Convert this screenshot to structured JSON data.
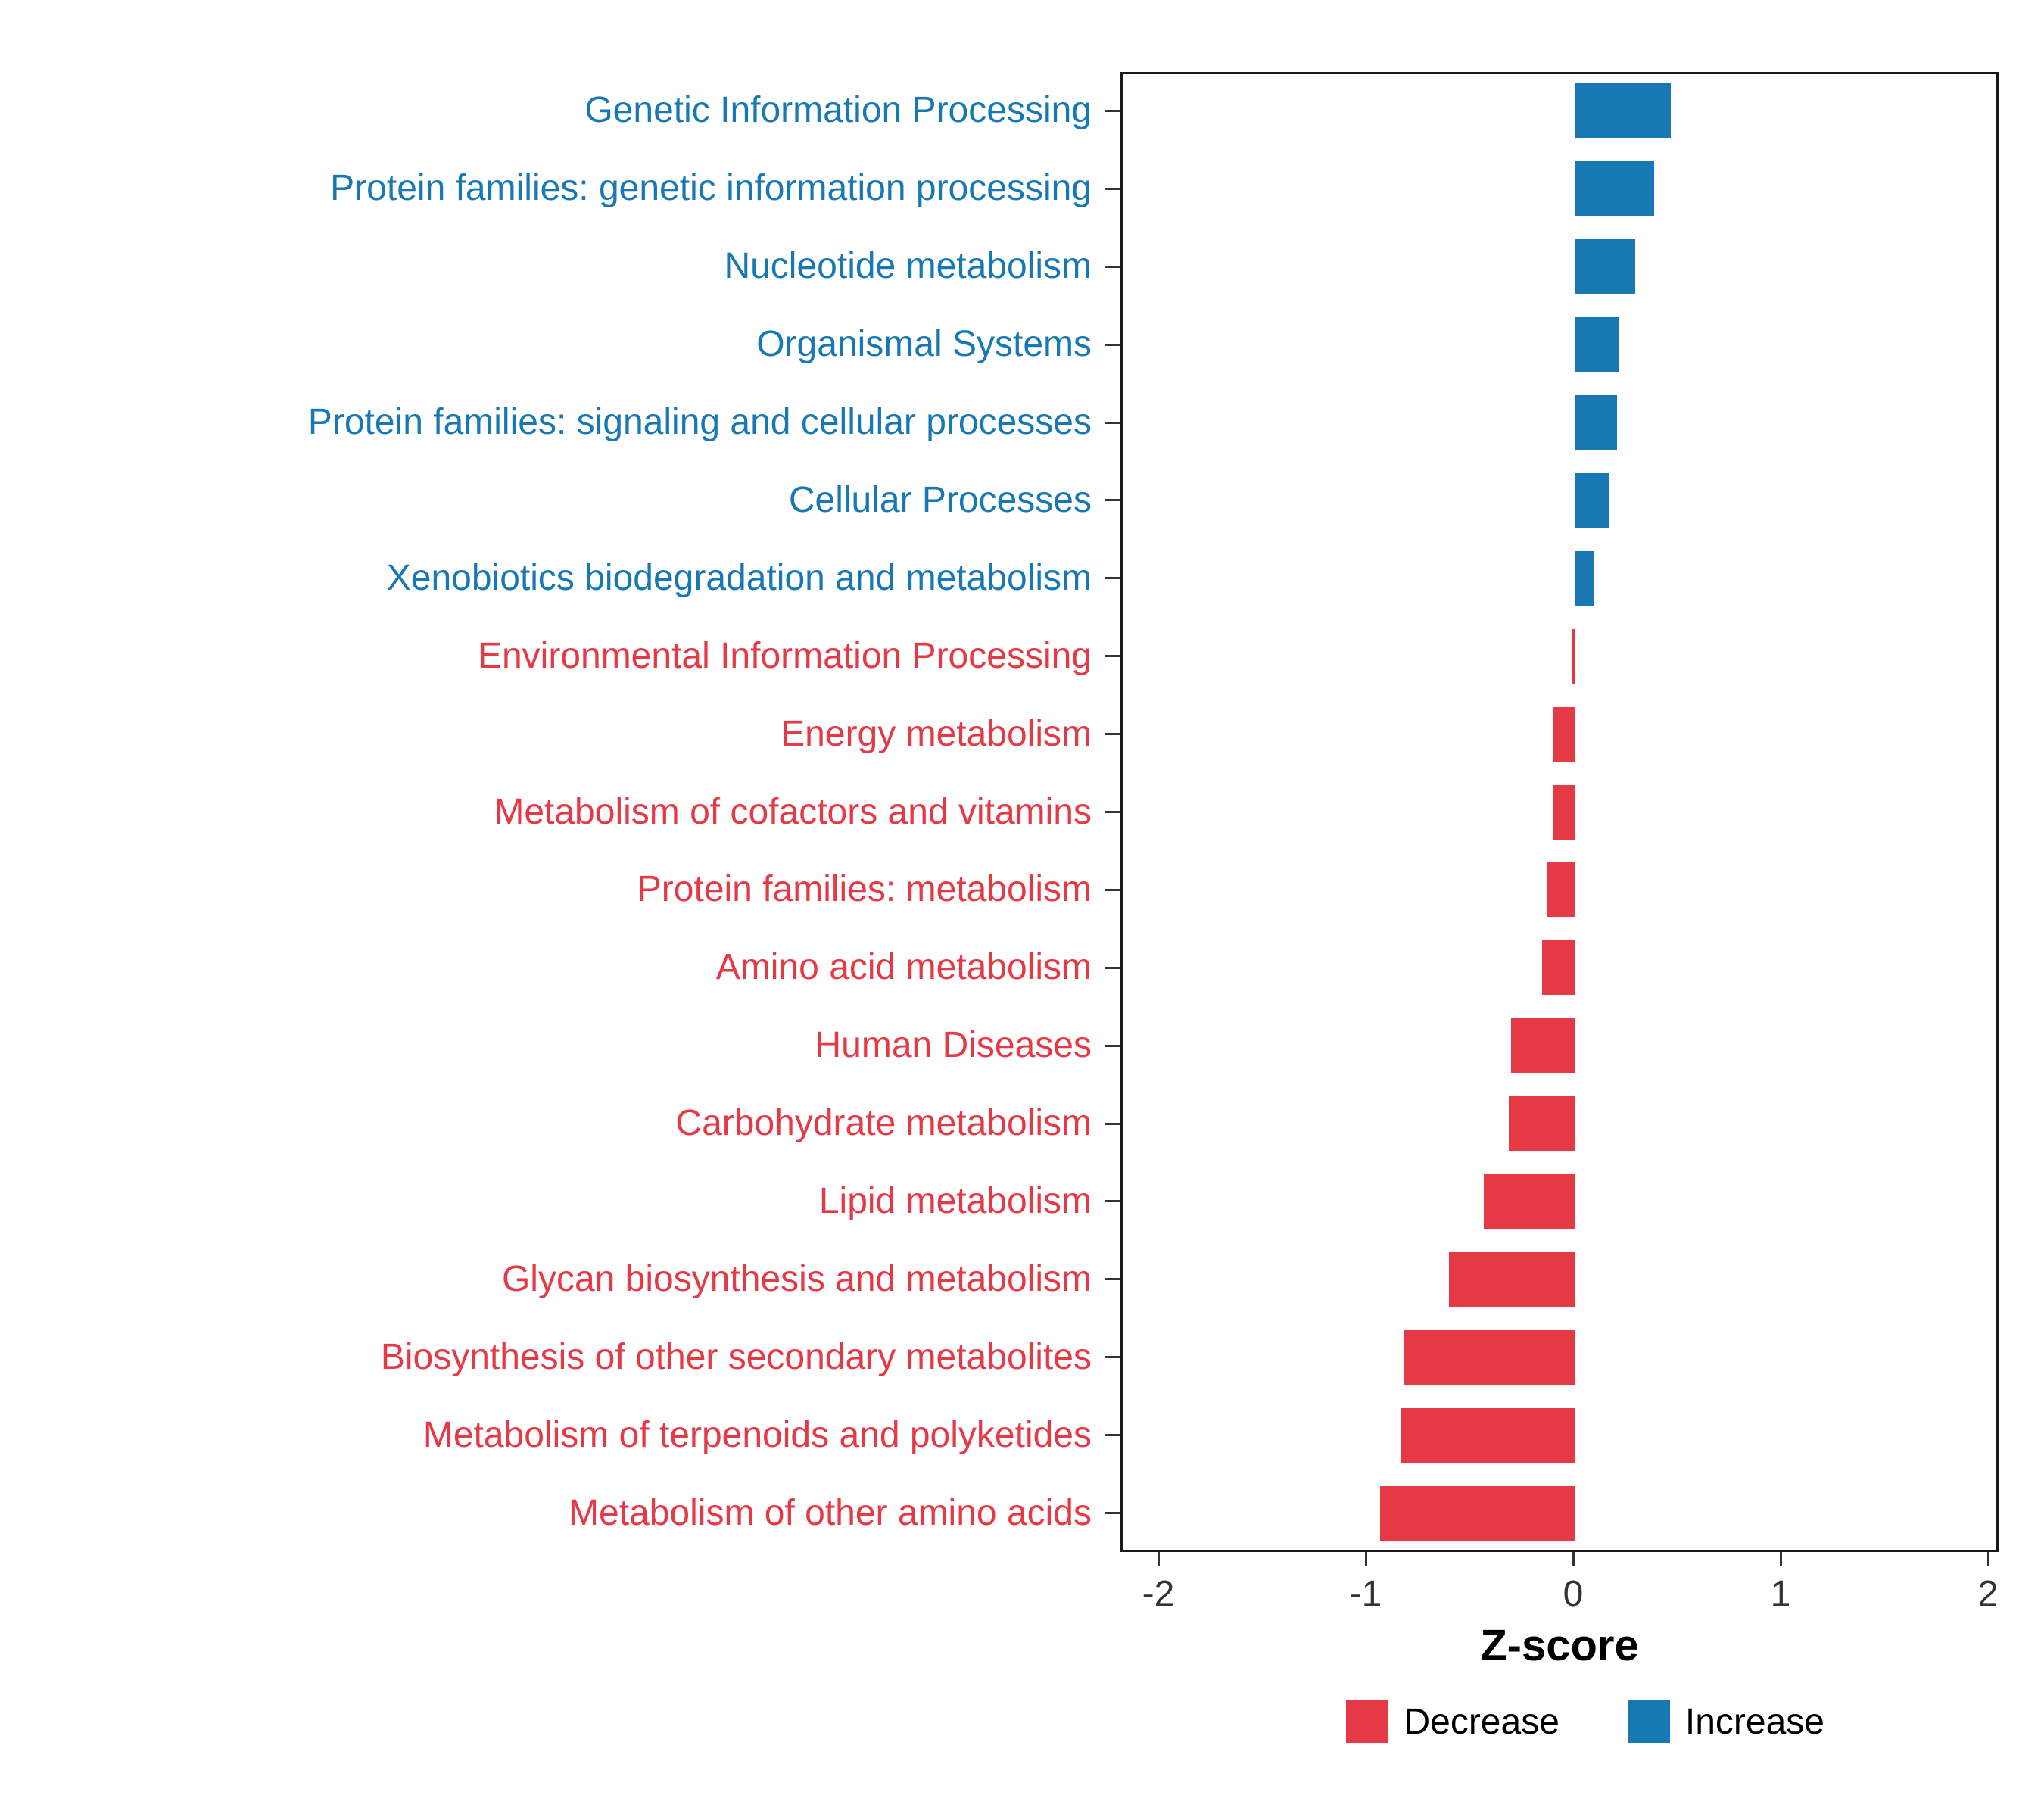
{
  "chart_data": {
    "type": "bar",
    "orientation": "horizontal",
    "title": "",
    "xlabel": "Z-score",
    "ylabel": "",
    "xlim": [
      -2.2,
      2.2
    ],
    "x_ticks": [
      -2,
      -1,
      0,
      1,
      2
    ],
    "grid": false,
    "categories": [
      "Genetic Information Processing",
      "Protein families: genetic information processing",
      "Nucleotide metabolism",
      "Organismal Systems",
      "Protein families: signaling and cellular processes",
      "Cellular Processes",
      "Xenobiotics biodegradation and metabolism",
      "Environmental Information Processing",
      "Energy metabolism",
      "Metabolism of cofactors and vitamins",
      "Protein families: metabolism",
      "Amino acid metabolism",
      "Human Diseases",
      "Carbohydrate metabolism",
      "Lipid metabolism",
      "Glycan biosynthesis and metabolism",
      "Biosynthesis of other secondary metabolites",
      "Metabolism of terpenoids and polyketides",
      "Metabolism of other amino acids"
    ],
    "values": [
      0.46,
      0.38,
      0.29,
      0.21,
      0.2,
      0.16,
      0.09,
      -0.02,
      -0.11,
      -0.11,
      -0.14,
      -0.16,
      -0.31,
      -0.32,
      -0.44,
      -0.61,
      -0.83,
      -0.84,
      -0.94
    ],
    "groups": [
      "Increase",
      "Increase",
      "Increase",
      "Increase",
      "Increase",
      "Increase",
      "Increase",
      "Decrease",
      "Decrease",
      "Decrease",
      "Decrease",
      "Decrease",
      "Decrease",
      "Decrease",
      "Decrease",
      "Decrease",
      "Decrease",
      "Decrease",
      "Decrease"
    ],
    "colors": {
      "Increase": "#1878B4",
      "Decrease": "#E63946"
    },
    "legend": {
      "position": "bottom",
      "entries": [
        {
          "label": "Decrease",
          "color": "#E63946"
        },
        {
          "label": "Increase",
          "color": "#1878B4"
        }
      ]
    }
  }
}
